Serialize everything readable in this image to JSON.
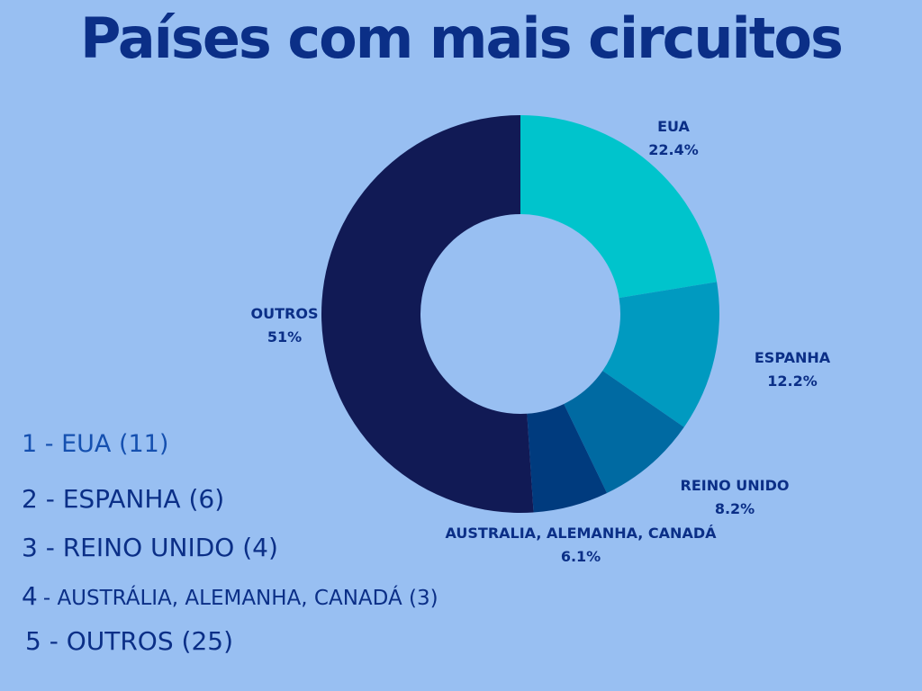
{
  "title": "Países com mais circuitos",
  "colors": {
    "background": "#98bff2",
    "text": "#0b2f87"
  },
  "chart_data": {
    "type": "pie",
    "donut": true,
    "title": "Países com mais circuitos",
    "slices": [
      {
        "name": "EUA",
        "label": "EUA",
        "value": 22.4,
        "display": "22.4%",
        "color": "#00c4cc"
      },
      {
        "name": "ESPANHA",
        "label": "ESPANHA",
        "value": 12.2,
        "display": "12.2%",
        "color": "#009ac0"
      },
      {
        "name": "REINO UNIDO",
        "label": "REINO UNIDO",
        "value": 8.2,
        "display": "8.2%",
        "color": "#006aa2"
      },
      {
        "name": "AUSTRALIA, ALEMANHA, CANADÁ",
        "label": "AUSTRALIA, ALEMANHA, CANADÁ",
        "value": 6.1,
        "display": "6.1%",
        "color": "#003b7e"
      },
      {
        "name": "OUTROS",
        "label": "OUTROS",
        "value": 51,
        "display": "51%",
        "color": "#111a55"
      }
    ]
  },
  "ranking": [
    {
      "text": "1 - EUA (11)"
    },
    {
      "text": "2 - ESPANHA (6)"
    },
    {
      "text": "3 - REINO UNIDO (4)"
    },
    {
      "num": "4",
      "text": "- AUSTRÁLIA, ALEMANHA, CANADÁ (3)"
    },
    {
      "text": "5 - OUTROS (25)"
    }
  ]
}
